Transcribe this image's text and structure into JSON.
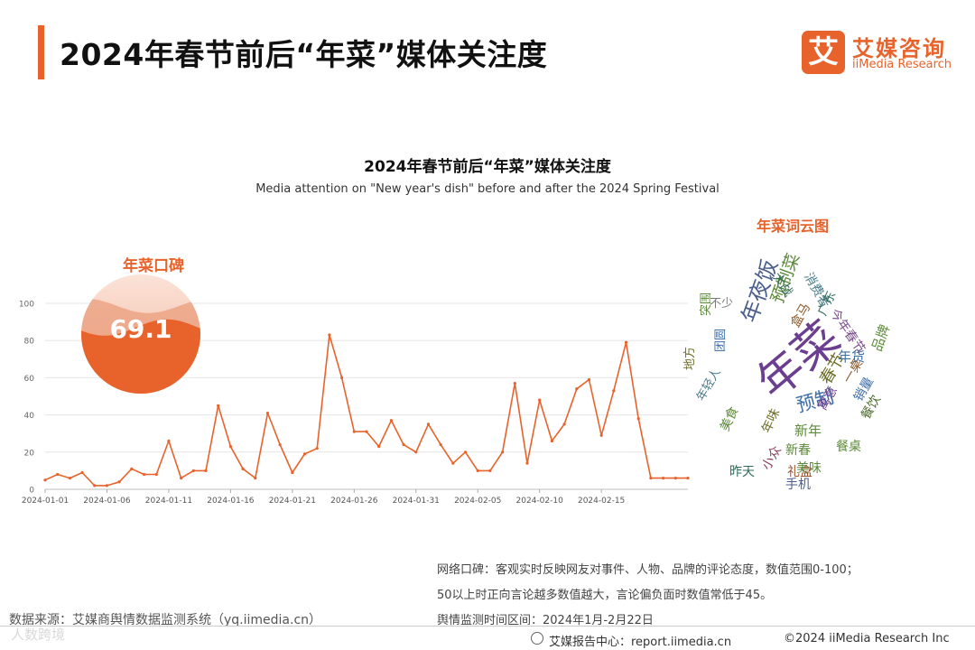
{
  "header": {
    "title": "2024年春节前后“年菜”媒体关注度",
    "logo_mark": "艾",
    "logo_cn": "艾媒咨询",
    "logo_en": "iiMedia Research"
  },
  "chart_data": {
    "type": "line",
    "title": "2024年春节前后“年菜”媒体关注度",
    "subtitle": "Media attention on \"New year's dish\" before and after the 2024 Spring Festival",
    "x": [
      "2024-01-01",
      "2024-01-02",
      "2024-01-03",
      "2024-01-04",
      "2024-01-05",
      "2024-01-06",
      "2024-01-07",
      "2024-01-08",
      "2024-01-09",
      "2024-01-10",
      "2024-01-11",
      "2024-01-12",
      "2024-01-13",
      "2024-01-14",
      "2024-01-15",
      "2024-01-16",
      "2024-01-17",
      "2024-01-18",
      "2024-01-19",
      "2024-01-20",
      "2024-01-21",
      "2024-01-22",
      "2024-01-23",
      "2024-01-24",
      "2024-01-25",
      "2024-01-26",
      "2024-01-27",
      "2024-01-28",
      "2024-01-29",
      "2024-01-30",
      "2024-01-31",
      "2024-02-01",
      "2024-02-02",
      "2024-02-03",
      "2024-02-04",
      "2024-02-05",
      "2024-02-06",
      "2024-02-07",
      "2024-02-08",
      "2024-02-09",
      "2024-02-10",
      "2024-02-11",
      "2024-02-12",
      "2024-02-13",
      "2024-02-14",
      "2024-02-15",
      "2024-02-16",
      "2024-02-17",
      "2024-02-18",
      "2024-02-19",
      "2024-02-20",
      "2024-02-21",
      "2024-02-22"
    ],
    "series": [
      {
        "values": [
          5,
          8,
          6,
          9,
          2,
          2,
          4,
          11,
          8,
          8,
          26,
          6,
          10,
          10,
          45,
          23,
          11,
          6,
          41,
          24,
          9,
          19,
          22,
          83,
          60,
          31,
          31,
          23,
          37,
          24,
          20,
          35,
          24,
          14,
          20,
          10,
          10,
          20,
          57,
          14,
          48,
          26,
          35,
          54,
          59,
          29,
          53,
          79,
          38,
          6,
          6,
          6,
          6
        ]
      }
    ],
    "xticks": [
      "2024-01-01",
      "2024-01-06",
      "2024-01-11",
      "2024-01-16",
      "2024-01-21",
      "2024-01-26",
      "2024-01-31",
      "2024-02-05",
      "2024-02-10",
      "2024-02-15"
    ],
    "yticks": [
      0,
      20,
      40,
      60,
      80,
      100
    ],
    "ylim": [
      0,
      100
    ],
    "grid": true,
    "color": "#e8632b"
  },
  "gauge": {
    "label": "年菜口碑",
    "value": "69.1",
    "fraction": 0.691
  },
  "word_cloud": {
    "title": "年菜词云图",
    "words": [
      "年菜",
      "年夜饭",
      "预制",
      "预制菜",
      "春节",
      "新年",
      "年货",
      "品牌",
      "今年春节",
      "消费者",
      "大战",
      "餐桌",
      "新春",
      "盒马",
      "礼盒",
      "美味",
      "手机",
      "小众",
      "昨天",
      "美食",
      "地方",
      "年味",
      "寓意",
      "销量",
      "餐饮",
      "广东",
      "一桌",
      "不少",
      "突围",
      "团圆",
      "年轻人"
    ]
  },
  "notes": {
    "line1": "网络口碑：客观实时反映网友对事件、人物、品牌的评论态度，数值范围0-100；",
    "line2": "50以上时正向言论越多数值越大，言论偏负面时数值常低于45。",
    "line3": "舆情监测时间区间：2024年1月-2月22日"
  },
  "source": "数据来源：艾媒商舆情数据监测系统（yq.iimedia.cn）",
  "footer": {
    "center": "艾媒报告中心：report.iimedia.cn",
    "copyright": "©2024  iiMedia Research  Inc"
  },
  "watermark": "人数跨境"
}
